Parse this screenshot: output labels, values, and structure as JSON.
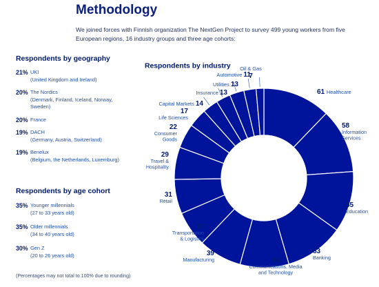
{
  "header": {
    "title": "Methodology",
    "intro": "We joined forces with Finnish organization The NextGen Project to survey 499 young workers from five European regions, 16 industry groups and three age cohorts:"
  },
  "geography": {
    "title": "Respondents by geography",
    "items": [
      {
        "pct": "21%",
        "name": "UKI",
        "detail": "(United Kingdom and Ireland)"
      },
      {
        "pct": "20%",
        "name": "The Nordics",
        "detail": "(Denmark, Finland, Iceland, Norway, Sweden)"
      },
      {
        "pct": "20%",
        "name": "France",
        "detail": ""
      },
      {
        "pct": "19%",
        "name": "DACH",
        "detail": "(Germany, Austria, Switzerland)"
      },
      {
        "pct": "19%",
        "name": "Benelux",
        "detail": "(Belgium, the Netherlands, Luxemburg)"
      }
    ]
  },
  "age": {
    "title": "Respondents by age cohort",
    "items": [
      {
        "pct": "35%",
        "name": "Younger millennials",
        "detail": "(27 to 33 years old)"
      },
      {
        "pct": "35%",
        "name": "Older millennials",
        "detail": "(34 to 40 years old)"
      },
      {
        "pct": "30%",
        "name": "Gen Z",
        "detail": "(20 to 26 years old)"
      }
    ]
  },
  "note": "(Percentages may not total to 100% due to rounding)",
  "chart_data": {
    "type": "pie",
    "title": "Respondents by industry",
    "color": "#00149b",
    "categories": [
      "Healthcare",
      "Information Services",
      "Education",
      "Banking",
      "Communications, Media and Technology",
      "Manufacturing",
      "Transportation & Logistics",
      "Retail",
      "Travel & Hospitality",
      "Consumer Goods",
      "Life Sciences",
      "Capital Markets",
      "Insurance",
      "Utilities",
      "Automotive",
      "Oil & Gas"
    ],
    "values": [
      61,
      58,
      55,
      53,
      44,
      39,
      32,
      31,
      29,
      22,
      17,
      14,
      13,
      13,
      11,
      7
    ]
  }
}
